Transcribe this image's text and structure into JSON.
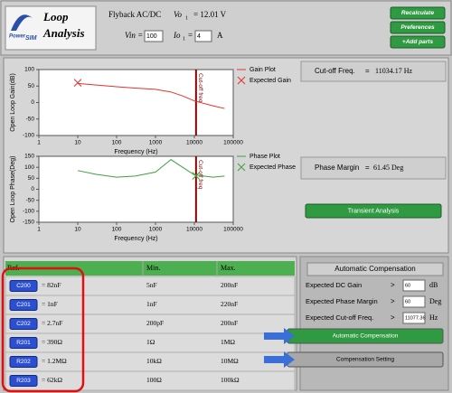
{
  "header": {
    "title_1": "Loop",
    "title_2": "Analysis",
    "brand_power": "Power",
    "brand_sim": "SIM"
  },
  "circuit": {
    "name": "Flyback AC/DC",
    "vo_label": "Vo",
    "vo_sub": "1",
    "vo_value": "= 12.01 V",
    "vin_label": "Vin =",
    "vin_value": "100",
    "io_label": "Io",
    "io_sub": "1",
    "io_eq": "=",
    "io_value": "4",
    "io_unit": "A"
  },
  "top_buttons": [
    "Recalculate",
    "Preferences",
    "+Add parts"
  ],
  "chart_data": [
    {
      "type": "line",
      "xlabel": "Frequency (Hz)",
      "ylabel": "Open Loop Gain(dB)",
      "xscale": "log",
      "xlim": [
        1,
        100000
      ],
      "xticks": [
        1,
        10,
        100,
        1000,
        10000,
        100000
      ],
      "ylim": [
        -100,
        100
      ],
      "yticks": [
        100,
        50,
        0,
        -50,
        -100
      ],
      "cutoff_x": 11034.17,
      "cutoff_label": "Cut-off freq",
      "series": [
        {
          "name": "Gain Plot",
          "color": "#e83030",
          "marker": "line",
          "x": [
            10,
            30,
            100,
            300,
            1000,
            2500,
            5000,
            10000,
            30000,
            60000
          ],
          "values": [
            58,
            53,
            48,
            44,
            40,
            32,
            20,
            5,
            -10,
            -18
          ]
        },
        {
          "name": "Expected Gain",
          "color": "#e83030",
          "marker": "x",
          "x": [
            10
          ],
          "values": [
            60
          ]
        }
      ]
    },
    {
      "type": "line",
      "xlabel": "Frequency (Hz)",
      "ylabel": "Open Loop Phase(Deg)",
      "xscale": "log",
      "xlim": [
        1,
        100000
      ],
      "xticks": [
        1,
        10,
        100,
        1000,
        10000,
        100000
      ],
      "ylim": [
        -150,
        150
      ],
      "yticks": [
        150,
        100,
        50,
        0,
        -50,
        -100,
        -150
      ],
      "cutoff_x": 11034.17,
      "cutoff_label": "Cut-off freq",
      "series": [
        {
          "name": "Phase Plot",
          "color": "#40a040",
          "marker": "line",
          "x": [
            10,
            30,
            100,
            300,
            1000,
            2500,
            5000,
            10000,
            30000,
            60000
          ],
          "values": [
            85,
            68,
            55,
            60,
            78,
            135,
            100,
            65,
            55,
            60
          ]
        },
        {
          "name": "Expected Phase",
          "color": "#40a040",
          "marker": "x",
          "x": [
            11000
          ],
          "values": [
            61
          ]
        }
      ]
    }
  ],
  "results": {
    "cutoff_label": "Cut-off Freq.",
    "cutoff_eq": "=",
    "cutoff_value": "11034.17 Hz",
    "pm_label": "Phase Margin",
    "pm_eq": "=",
    "pm_value": "61.45 Deg"
  },
  "transient_button": "Transient Analysis",
  "table": {
    "columns": [
      "Ref.",
      "Min.",
      "Max."
    ],
    "rows": [
      {
        "ref": "C200",
        "value": "= 82nF",
        "min": "5nF",
        "max": "200nF"
      },
      {
        "ref": "C201",
        "value": "= 1nF",
        "min": "1nF",
        "max": "220nF"
      },
      {
        "ref": "C202",
        "value": "= 2.7nF",
        "min": "200pF",
        "max": "200nF"
      },
      {
        "ref": "R201",
        "value": "= 390Ω",
        "min": "1Ω",
        "max": "1MΩ"
      },
      {
        "ref": "R202",
        "value": "= 1.2MΩ",
        "min": "10kΩ",
        "max": "10MΩ"
      },
      {
        "ref": "R203",
        "value": "= 62kΩ",
        "min": "100Ω",
        "max": "100kΩ"
      }
    ]
  },
  "compensation": {
    "title": "Automatic Compensation",
    "fields": [
      {
        "label": "Expected DC Gain",
        "op": ">",
        "value": "60",
        "unit": "dB"
      },
      {
        "label": "Expected Phase Margin",
        "op": ">",
        "value": "60",
        "unit": "Deg"
      },
      {
        "label": "Expected Cut-off Freq.",
        "op": ">",
        "value": "11077.36",
        "unit": "Hz"
      }
    ],
    "buttons": [
      "Automatic Compensation",
      "Compensation Setting"
    ]
  }
}
